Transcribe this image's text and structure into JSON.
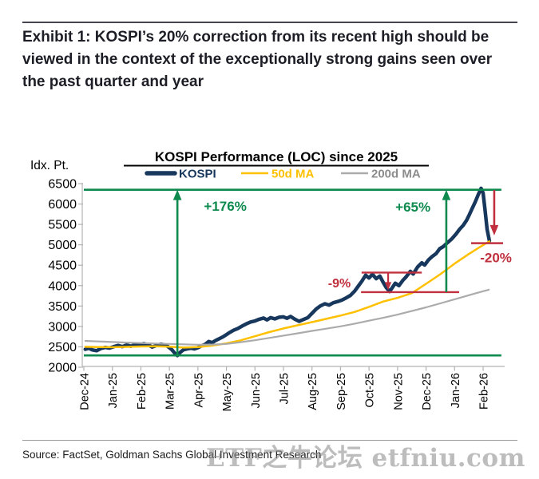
{
  "header": {
    "exhibit_title": "Exhibit 1: KOSPI’s 20% correction from its recent high should be viewed in the context of the exceptionally strong gains seen over the past quarter and year"
  },
  "footer": {
    "source": "Source: FactSet, Goldman Sachs Global Investment Research",
    "watermark": "ETF之牛论坛 etfniu.com"
  },
  "chart_data": {
    "type": "line",
    "title": "KOSPI Performance (LOC) since 2025",
    "y_axis_unit": "Idx. Pt.",
    "ylim": [
      2000,
      6500
    ],
    "y_ticks": [
      6500,
      6000,
      5500,
      5000,
      4500,
      4000,
      3500,
      3000,
      2500,
      2000
    ],
    "x_tick_labels": [
      "Dec-24",
      "Jan-25",
      "Feb-25",
      "Mar-25",
      "Apr-25",
      "May-25",
      "Jun-25",
      "Jul-25",
      "Aug-25",
      "Sep-25",
      "Oct-25",
      "Nov-25",
      "Dec-25",
      "Jan-26",
      "Feb-26"
    ],
    "grid": false,
    "legend_position": "top-center",
    "colors": {
      "green": "#0E8A4E",
      "red": "#C0303E",
      "navy": "#17375D",
      "gold": "#FFC000",
      "gray": "#ABABAB",
      "gray_text": "#8C8C8C"
    },
    "series": [
      {
        "name": "KOSPI",
        "color": "#17375D",
        "width": 4.5,
        "points": [
          [
            0.05,
            2440
          ],
          [
            0.18,
            2465
          ],
          [
            0.3,
            2425
          ],
          [
            0.45,
            2405
          ],
          [
            0.6,
            2460
          ],
          [
            0.75,
            2485
          ],
          [
            0.9,
            2470
          ],
          [
            1.05,
            2505
          ],
          [
            1.2,
            2535
          ],
          [
            1.35,
            2505
          ],
          [
            1.5,
            2545
          ],
          [
            1.65,
            2515
          ],
          [
            1.8,
            2555
          ],
          [
            1.95,
            2540
          ],
          [
            2.1,
            2580
          ],
          [
            2.25,
            2550
          ],
          [
            2.4,
            2495
          ],
          [
            2.55,
            2535
          ],
          [
            2.7,
            2565
          ],
          [
            2.85,
            2545
          ],
          [
            2.95,
            2505
          ],
          [
            3.08,
            2435
          ],
          [
            3.18,
            2350
          ],
          [
            3.28,
            2285
          ],
          [
            3.38,
            2365
          ],
          [
            3.5,
            2430
          ],
          [
            3.62,
            2450
          ],
          [
            3.75,
            2465
          ],
          [
            3.88,
            2450
          ],
          [
            4.0,
            2480
          ],
          [
            4.12,
            2520
          ],
          [
            4.25,
            2560
          ],
          [
            4.38,
            2630
          ],
          [
            4.5,
            2600
          ],
          [
            4.62,
            2655
          ],
          [
            4.75,
            2700
          ],
          [
            4.88,
            2745
          ],
          [
            5.0,
            2800
          ],
          [
            5.12,
            2855
          ],
          [
            5.25,
            2905
          ],
          [
            5.4,
            2950
          ],
          [
            5.55,
            3010
          ],
          [
            5.7,
            3065
          ],
          [
            5.85,
            3110
          ],
          [
            6.0,
            3135
          ],
          [
            6.15,
            3175
          ],
          [
            6.3,
            3205
          ],
          [
            6.42,
            3160
          ],
          [
            6.55,
            3215
          ],
          [
            6.7,
            3185
          ],
          [
            6.85,
            3225
          ],
          [
            7.0,
            3235
          ],
          [
            7.12,
            3200
          ],
          [
            7.25,
            3245
          ],
          [
            7.4,
            3175
          ],
          [
            7.55,
            3125
          ],
          [
            7.7,
            3170
          ],
          [
            7.85,
            3215
          ],
          [
            8.0,
            3320
          ],
          [
            8.15,
            3430
          ],
          [
            8.3,
            3505
          ],
          [
            8.45,
            3555
          ],
          [
            8.6,
            3525
          ],
          [
            8.75,
            3580
          ],
          [
            8.9,
            3610
          ],
          [
            9.05,
            3645
          ],
          [
            9.2,
            3700
          ],
          [
            9.35,
            3760
          ],
          [
            9.5,
            3870
          ],
          [
            9.62,
            3985
          ],
          [
            9.75,
            4110
          ],
          [
            9.88,
            4255
          ],
          [
            10.0,
            4185
          ],
          [
            10.12,
            4280
          ],
          [
            10.25,
            4170
          ],
          [
            10.38,
            4235
          ],
          [
            10.5,
            4075
          ],
          [
            10.6,
            3955
          ],
          [
            10.72,
            3855
          ],
          [
            10.82,
            3955
          ],
          [
            10.92,
            4060
          ],
          [
            11.05,
            4000
          ],
          [
            11.18,
            4125
          ],
          [
            11.3,
            4215
          ],
          [
            11.45,
            4350
          ],
          [
            11.55,
            4285
          ],
          [
            11.7,
            4455
          ],
          [
            11.85,
            4560
          ],
          [
            11.95,
            4505
          ],
          [
            12.08,
            4625
          ],
          [
            12.2,
            4705
          ],
          [
            12.35,
            4785
          ],
          [
            12.48,
            4905
          ],
          [
            12.6,
            4955
          ],
          [
            12.75,
            5055
          ],
          [
            12.9,
            5145
          ],
          [
            13.05,
            5265
          ],
          [
            13.18,
            5385
          ],
          [
            13.3,
            5475
          ],
          [
            13.42,
            5600
          ],
          [
            13.52,
            5745
          ],
          [
            13.62,
            5895
          ],
          [
            13.72,
            6045
          ],
          [
            13.82,
            6215
          ],
          [
            13.93,
            6385
          ],
          [
            14.0,
            6270
          ],
          [
            14.07,
            5840
          ],
          [
            14.14,
            5380
          ],
          [
            14.22,
            5095
          ]
        ]
      },
      {
        "name": "50d MA",
        "color": "#FFC000",
        "width": 2.5,
        "points": [
          [
            0.05,
            2500
          ],
          [
            0.5,
            2495
          ],
          [
            1.0,
            2492
          ],
          [
            1.5,
            2498
          ],
          [
            2.0,
            2508
          ],
          [
            2.5,
            2512
          ],
          [
            3.0,
            2505
          ],
          [
            3.5,
            2482
          ],
          [
            4.0,
            2495
          ],
          [
            4.5,
            2530
          ],
          [
            5.0,
            2585
          ],
          [
            5.5,
            2660
          ],
          [
            6.0,
            2760
          ],
          [
            6.5,
            2860
          ],
          [
            7.0,
            2950
          ],
          [
            7.5,
            3030
          ],
          [
            8.0,
            3105
          ],
          [
            8.5,
            3185
          ],
          [
            9.0,
            3265
          ],
          [
            9.5,
            3355
          ],
          [
            10.0,
            3480
          ],
          [
            10.5,
            3610
          ],
          [
            11.0,
            3700
          ],
          [
            11.5,
            3815
          ],
          [
            12.0,
            4045
          ],
          [
            12.5,
            4280
          ],
          [
            13.0,
            4540
          ],
          [
            13.5,
            4775
          ],
          [
            13.9,
            4950
          ],
          [
            14.22,
            5085
          ]
        ]
      },
      {
        "name": "200d MA",
        "color": "#ABABAB",
        "width": 2.2,
        "points": [
          [
            0.05,
            2645
          ],
          [
            0.5,
            2632
          ],
          [
            1.0,
            2618
          ],
          [
            1.5,
            2604
          ],
          [
            2.0,
            2592
          ],
          [
            2.5,
            2582
          ],
          [
            3.0,
            2572
          ],
          [
            3.5,
            2562
          ],
          [
            4.0,
            2552
          ],
          [
            4.5,
            2556
          ],
          [
            5.0,
            2572
          ],
          [
            5.5,
            2615
          ],
          [
            6.0,
            2662
          ],
          [
            6.5,
            2718
          ],
          [
            7.0,
            2775
          ],
          [
            7.5,
            2832
          ],
          [
            8.0,
            2890
          ],
          [
            8.5,
            2945
          ],
          [
            9.0,
            3002
          ],
          [
            9.5,
            3068
          ],
          [
            10.0,
            3140
          ],
          [
            10.5,
            3212
          ],
          [
            11.0,
            3290
          ],
          [
            11.5,
            3378
          ],
          [
            12.0,
            3468
          ],
          [
            12.5,
            3565
          ],
          [
            13.0,
            3665
          ],
          [
            13.5,
            3765
          ],
          [
            14.0,
            3862
          ],
          [
            14.2,
            3900
          ]
        ]
      }
    ],
    "annotations": {
      "hlines": [
        {
          "v": 6350,
          "m0": 0.0,
          "m1": 14.64,
          "color": "green",
          "w": 2.6
        },
        {
          "v": 2290,
          "m0": 0.0,
          "m1": 14.64,
          "color": "green",
          "w": 2.6
        },
        {
          "v": 4320,
          "m0": 9.74,
          "m1": 11.85,
          "color": "red",
          "w": 2.4
        },
        {
          "v": 3840,
          "m0": 9.72,
          "m1": 13.16,
          "color": "red",
          "w": 2.4
        },
        {
          "v": 5040,
          "m0": 13.58,
          "m1": 14.7,
          "color": "red",
          "w": 2.4
        }
      ],
      "arrows": [
        {
          "m": 3.28,
          "v0": 2290,
          "v1": 6350,
          "dir": "up",
          "color": "green",
          "head": 13,
          "w": 2.6
        },
        {
          "m": 12.71,
          "v0": 3840,
          "v1": 6350,
          "dir": "up",
          "color": "green",
          "head": 13,
          "w": 2.6
        },
        {
          "m": 10.67,
          "v0": 4300,
          "v1": 3890,
          "dir": "down",
          "color": "red",
          "head": 10,
          "w": 2.2
        },
        {
          "m": 14.39,
          "v0": 6340,
          "v1": 5230,
          "dir": "down",
          "color": "red",
          "head": 13,
          "w": 2.6
        }
      ],
      "labels": [
        {
          "text": "+176%",
          "m": 4.96,
          "v": 5950,
          "color": "green",
          "size": 17
        },
        {
          "text": "+65%",
          "m": 11.54,
          "v": 5930,
          "color": "green",
          "size": 17
        },
        {
          "text": "-9%",
          "m": 8.96,
          "v": 4070,
          "color": "red",
          "size": 16
        },
        {
          "text": "-20%",
          "m": 14.45,
          "v": 4690,
          "color": "red",
          "size": 17
        }
      ]
    }
  }
}
